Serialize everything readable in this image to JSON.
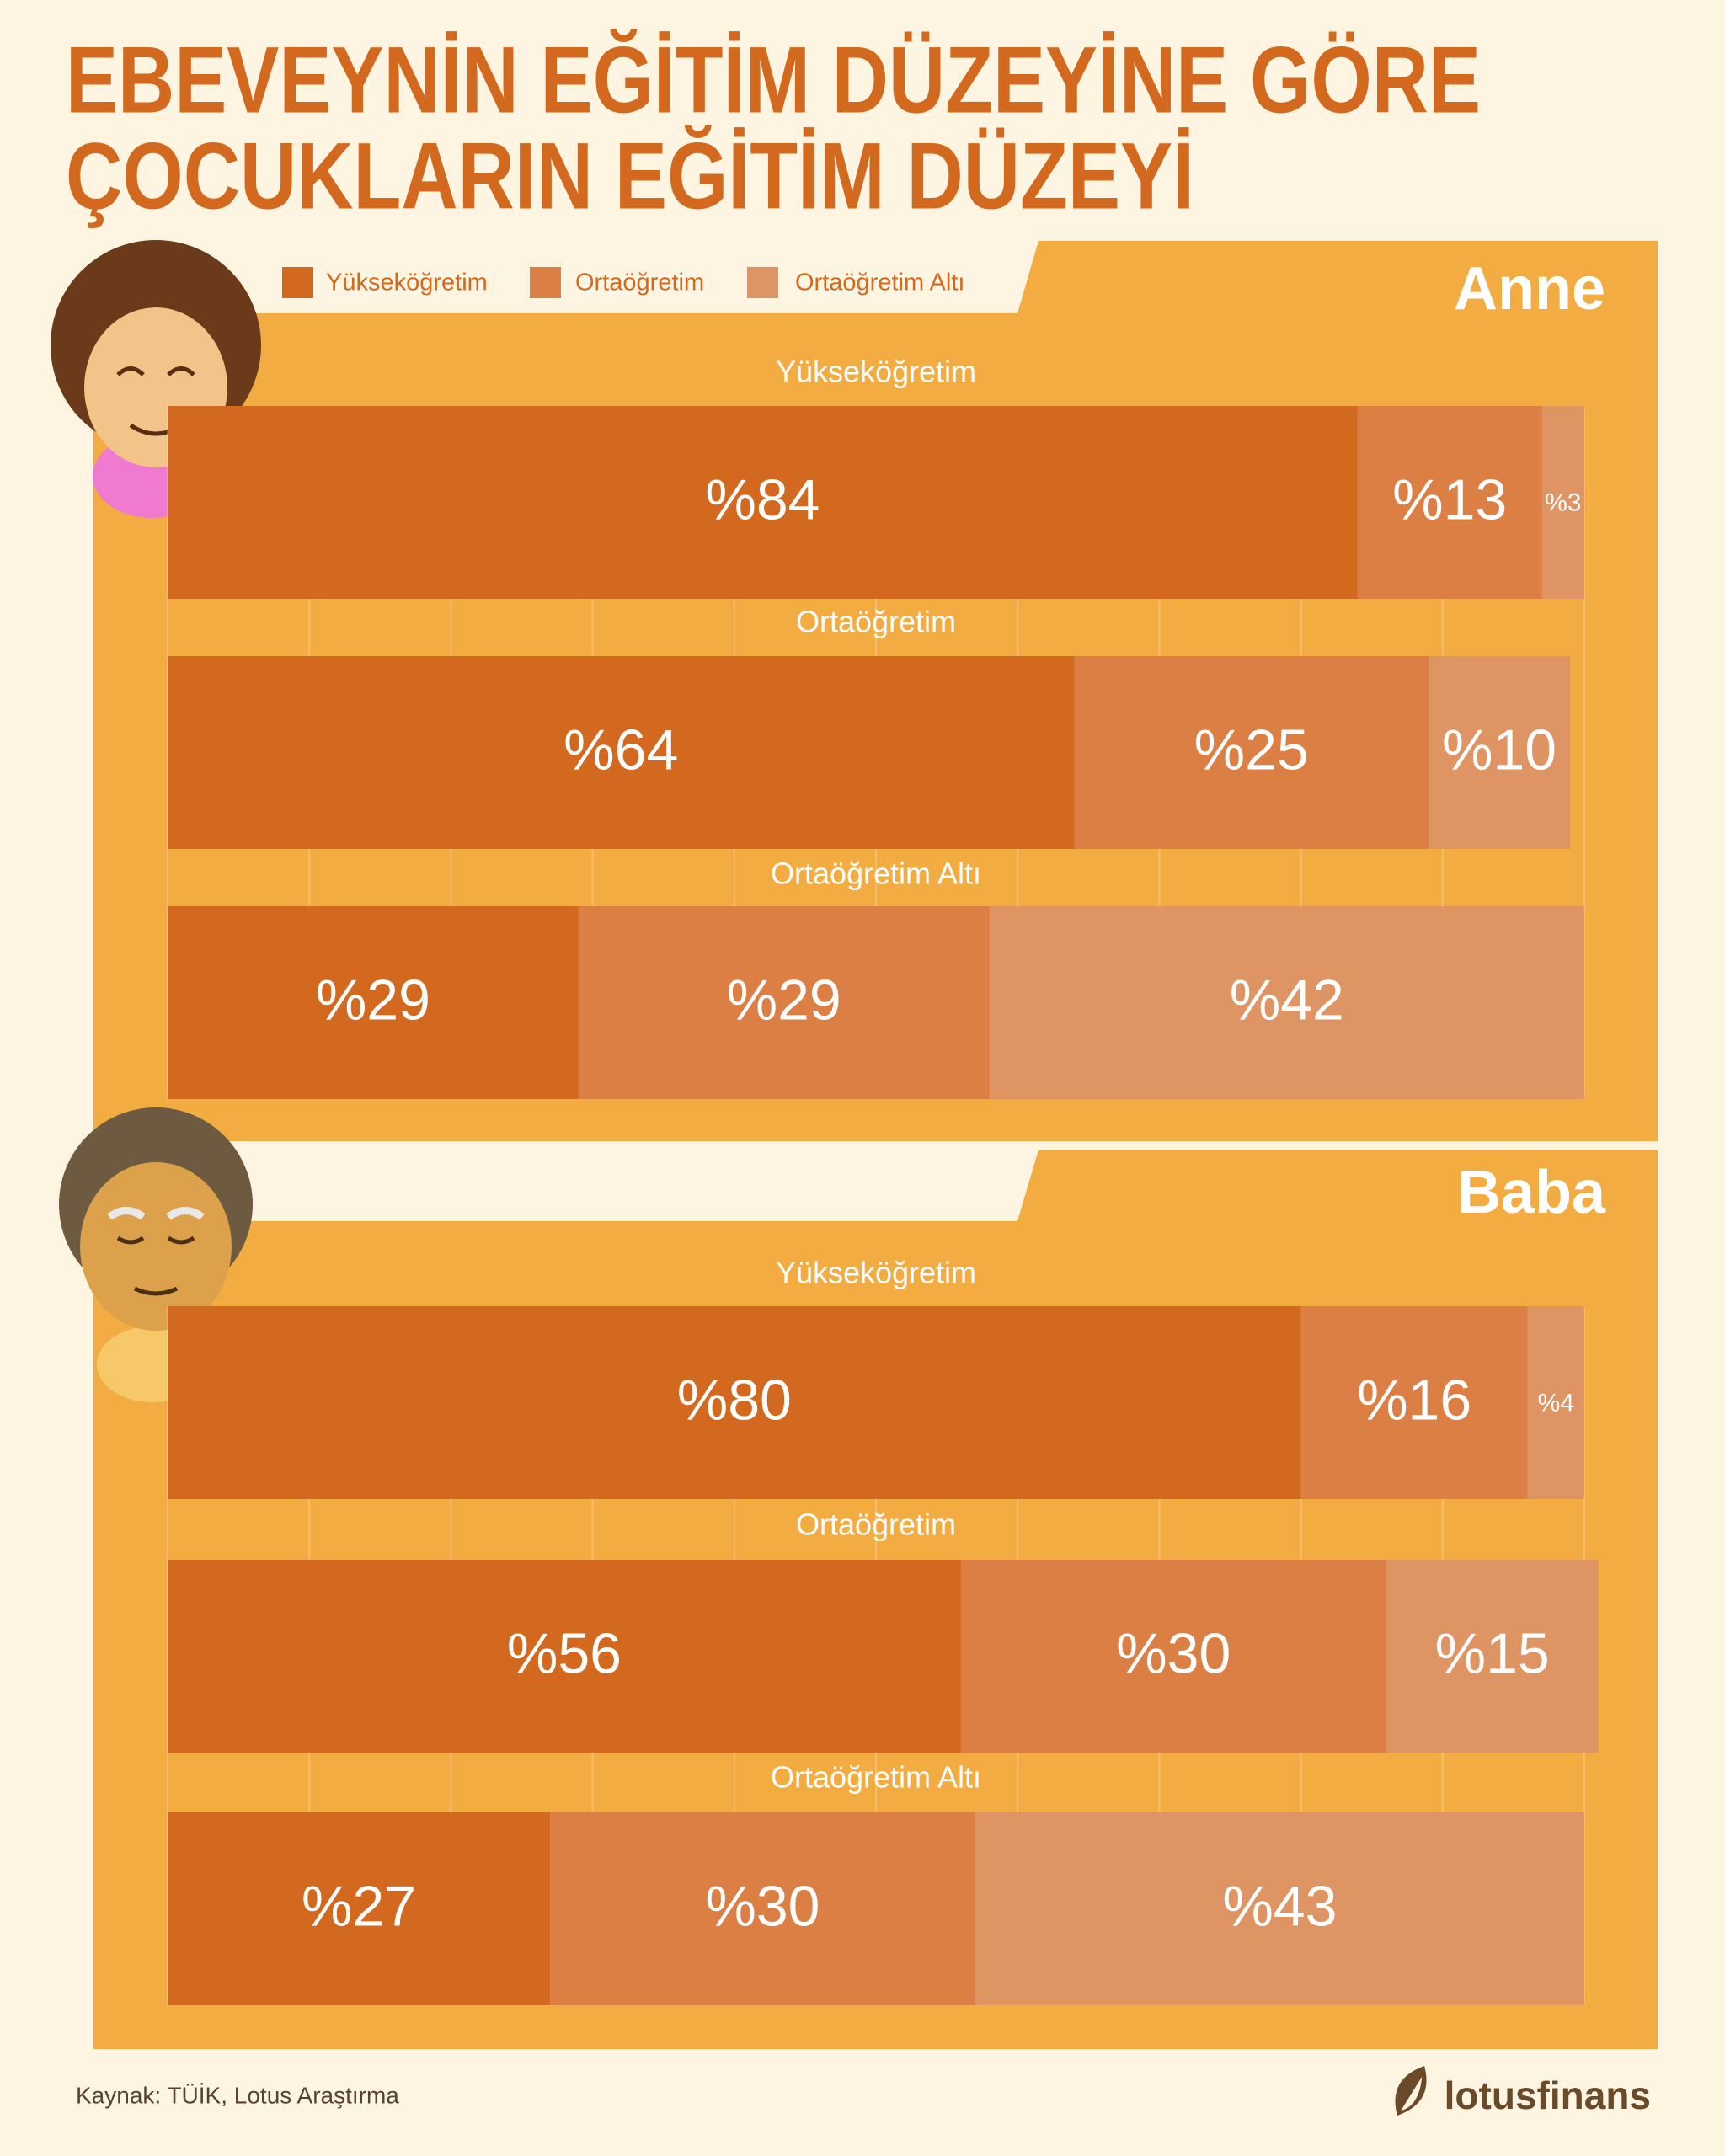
{
  "title": [
    "EBEVEYNİN EĞİTİM DÜZEYİNE GÖRE",
    "ÇOCUKLARIN EĞİTİM DÜZEYİ"
  ],
  "source": "Kaynak: TÜİK, Lotus Araştırma",
  "brand": "lotusfinans",
  "chart_data": [
    {
      "type": "bar",
      "orientation": "horizontal",
      "stacked": true,
      "title": "Anne",
      "categories": [
        "Yükseköğretim",
        "Ortaöğretim",
        "Ortaöğretim Altı"
      ],
      "series": [
        {
          "name": "Yükseköğretim",
          "color": "#d2691e",
          "values": [
            84,
            64,
            29
          ],
          "value_labels": [
            "%84",
            "%64",
            "%29"
          ]
        },
        {
          "name": "Ortaöğretim",
          "color": "#dc7f45",
          "values": [
            13,
            25,
            29
          ],
          "value_labels": [
            "%13",
            "%25",
            "%29"
          ]
        },
        {
          "name": "Ortaöğretim Altı",
          "color": "#de9463",
          "values": [
            3,
            10,
            42
          ],
          "value_labels": [
            "%3",
            "%10",
            "%42"
          ]
        }
      ],
      "xlim": [
        0,
        100
      ],
      "xticks": [
        0,
        10,
        20,
        30,
        40,
        50,
        60,
        70,
        80,
        90,
        100
      ],
      "grid": true
    },
    {
      "type": "bar",
      "orientation": "horizontal",
      "stacked": true,
      "title": "Baba",
      "categories": [
        "Yükseköğretim",
        "Ortaöğretim",
        "Ortaöğretim Altı"
      ],
      "series": [
        {
          "color": "#d2691e",
          "values": [
            80,
            56,
            27
          ],
          "value_labels": [
            "%80",
            "%56",
            "%27"
          ]
        },
        {
          "color": "#dc7f45",
          "values": [
            16,
            30,
            30
          ],
          "value_labels": [
            "%16",
            "%30",
            "%30"
          ]
        },
        {
          "color": "#de9463",
          "values": [
            4,
            15,
            43
          ],
          "value_labels": [
            "%4",
            "%15",
            "%43"
          ]
        }
      ],
      "xlim": [
        0,
        100
      ],
      "xticks": [
        0,
        10,
        20,
        30,
        40,
        50,
        60,
        70,
        80,
        90,
        100
      ],
      "grid": true
    }
  ]
}
